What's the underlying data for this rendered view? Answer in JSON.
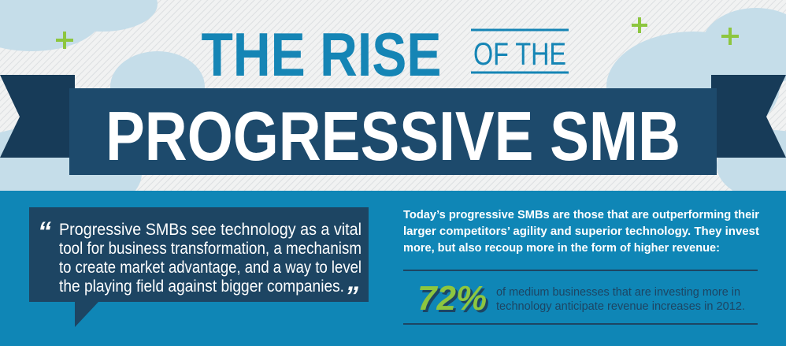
{
  "header": {
    "title_line1": "THE RISE",
    "title_of_the": "OF THE",
    "title_line2": "PROGRESSIVE SMB"
  },
  "quote": {
    "open": "“",
    "lines": [
      "Progressive SMBs see technology as a vital",
      "tool for business transformation, a mechanism",
      "to create market advantage, and a way to level",
      "the playing field against bigger companies."
    ],
    "close": "”"
  },
  "intro": {
    "lines": [
      "Today’s progressive SMBs are those that are outperforming their",
      "larger competitors’ agility and superior technology. They invest",
      "more, but also recoup more in the form of higher revenue:"
    ]
  },
  "stat": {
    "value": "72%",
    "lines": [
      "of medium businesses that are investing more in",
      "technology anticipate revenue increases in 2012."
    ]
  }
}
